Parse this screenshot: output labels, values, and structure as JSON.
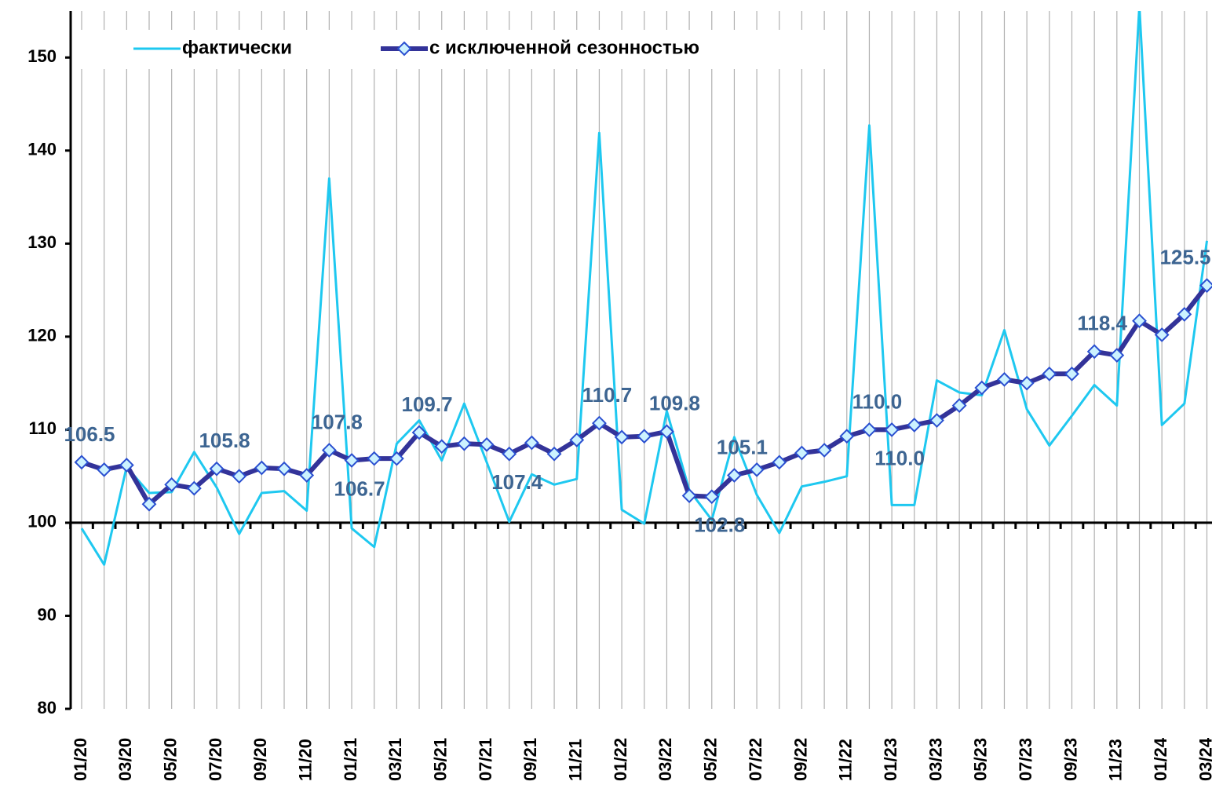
{
  "chart_data": {
    "type": "line",
    "categories": [
      "01/20",
      null,
      "03/20",
      null,
      "05/20",
      null,
      "07/20",
      null,
      "09/20",
      null,
      "11/20",
      null,
      "01/21",
      null,
      "03/21",
      null,
      "05/21",
      null,
      "07/21",
      null,
      "09/21",
      null,
      "11/21",
      null,
      "01/22",
      null,
      "03/22",
      null,
      "05/22",
      null,
      "07/22",
      null,
      "09/22",
      null,
      "11/22",
      null,
      "01/23",
      null,
      "03/23",
      null,
      "05/23",
      null,
      "07/23",
      null,
      "09/23",
      null,
      "11/23",
      null,
      "01/24",
      null,
      "03/24"
    ],
    "series": [
      {
        "name": "фактически",
        "color": "#1ec8f0",
        "values": [
          99.4,
          95.5,
          106.0,
          103.2,
          103.3,
          107.6,
          103.8,
          98.8,
          103.2,
          103.4,
          101.3,
          137.0,
          99.4,
          97.4,
          108.5,
          111.0,
          106.7,
          112.8,
          106.5,
          100.1,
          105.2,
          104.1,
          104.7,
          141.9,
          101.4,
          99.9,
          112.0,
          103.5,
          100.3,
          109.2,
          103.0,
          98.9,
          103.9,
          104.4,
          105.0,
          142.7,
          101.9,
          101.9,
          115.3,
          114.0,
          113.7,
          120.7,
          112.2,
          108.3,
          111.5,
          114.8,
          112.6,
          155.5,
          110.5,
          112.8,
          130.3
        ]
      },
      {
        "name": "с исключенной сезонностью",
        "color": "#333399",
        "values": [
          106.5,
          105.7,
          106.2,
          102.0,
          104.1,
          103.7,
          105.8,
          105.0,
          105.9,
          105.8,
          105.1,
          107.8,
          106.7,
          106.9,
          106.9,
          109.7,
          108.2,
          108.5,
          108.4,
          107.4,
          108.6,
          107.4,
          108.9,
          110.7,
          109.2,
          109.3,
          109.8,
          102.9,
          102.8,
          105.1,
          105.7,
          106.5,
          107.5,
          107.8,
          109.3,
          110.0,
          110.0,
          110.5,
          111.0,
          112.6,
          114.5,
          115.4,
          115.0,
          116.0,
          116.0,
          118.4,
          118.0,
          121.7,
          120.2,
          122.4,
          125.5
        ],
        "value_labels": [
          "106.5",
          null,
          null,
          null,
          null,
          null,
          "105.8",
          null,
          null,
          null,
          null,
          "107.8",
          "106.7",
          null,
          null,
          "109.7",
          null,
          null,
          null,
          "107.4",
          null,
          null,
          null,
          "110.7",
          null,
          null,
          "109.8",
          null,
          "102.8",
          "105.1",
          null,
          null,
          null,
          null,
          null,
          "110.0",
          "110.0",
          null,
          null,
          null,
          null,
          null,
          null,
          null,
          null,
          "118.4",
          null,
          null,
          null,
          null,
          "125.5"
        ]
      }
    ],
    "ylim": [
      80,
      155
    ],
    "yticks": [
      80,
      90,
      100,
      110,
      120,
      130,
      140,
      150
    ],
    "grid": "vertical",
    "axis_crossing": 100
  }
}
